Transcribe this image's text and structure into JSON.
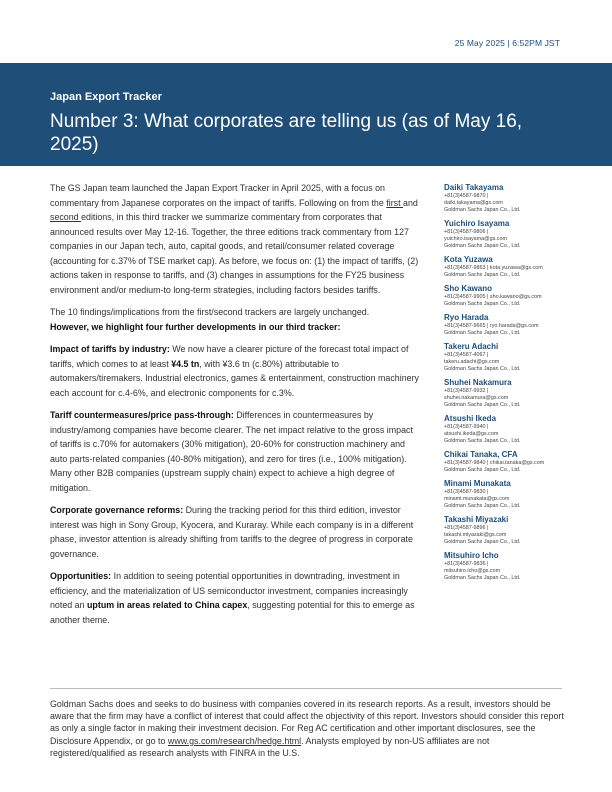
{
  "header": {
    "date": "25 May 2025 | 6:52PM JST"
  },
  "banner": {
    "series": "Japan Export Tracker",
    "title": "Number 3: What corporates are telling us (as of May 16, 2025)"
  },
  "body": {
    "p1": {
      "a": "The GS Japan team launched the Japan Export Tracker in April 2025, with a focus on commentary from Japanese corporates on the impact of tariffs. Following on from the ",
      "link1": "first ",
      "b": "and ",
      "link2": "second ",
      "c": "editions, in this third tracker we summarize commentary from corporates that announced results over May 12-16. Together, the three editions track commentary from 127 companies in our Japan tech, auto, capital goods, and retail/consumer related coverage (accounting for c.37% of TSE market cap). As before, we focus on: (1) the impact of tariffs, (2) actions taken in response to tariffs, and (3) changes in assumptions for the FY25 business environment and/or medium-to long-term strategies, including factors besides tariffs."
    },
    "p2": {
      "a": "The 10 findings/implications from the first/second trackers are largely unchanged.",
      "b": "However, we highlight four further developments in our third tracker:"
    },
    "p3": {
      "head": "Impact of tariffs by industry:",
      "a": " We now have a clearer picture of the forecast total impact of tariffs, which comes to at least ",
      "bold": "¥4.5 tn",
      "b": ", with ¥3.6 tn (c.80%) attributable to automakers/tiremakers. Industrial electronics, games & entertainment, construction machinery each account for c.4-6%, and electronic components for c.3%."
    },
    "p4": {
      "head": "Tariff countermeasures/price pass-through:",
      "a": " Differences in countermeasures by industry/among companies have become clearer. The net impact relative to the gross impact of tariffs is c.70% for automakers (30% mitigation), 20-60% for construction machinery and auto parts-related companies (40-80% mitigation), and zero for tires (i.e., 100% mitigation). Many other B2B companies (upstream supply chain) expect to achieve a high degree of mitigation."
    },
    "p5": {
      "head": "Corporate governance reforms:",
      "a": " During the tracking period for this third edition, investor interest was high in Sony Group, Kyocera, and Kuraray. While each company is in a different phase, investor attention is already shifting from tariffs to the degree of progress in corporate governance."
    },
    "p6": {
      "head": "Opportunities:",
      "a": " In addition to seeing potential opportunities in downtrading, investment in efficiency, and the materialization of US semiconductor investment, companies increasingly noted an ",
      "bold": "uptum in areas related to China capex",
      "b": ", suggesting potential for this to emerge as another theme."
    }
  },
  "authors": [
    {
      "name": "Daiki Takayama",
      "lines": [
        "+81(3)4587-9870 |",
        "daiki.takayama@gs.com",
        "Goldman Sachs Japan Co., Ltd."
      ]
    },
    {
      "name": "Yuichiro Isayama",
      "lines": [
        "+81(3)4587-9806 |",
        "yuichiro.isayama@gs.com",
        "Goldman Sachs Japan Co., Ltd."
      ]
    },
    {
      "name": "Kota Yuzawa",
      "lines": [
        "+81(3)4587-9863 | kota.yuzawa@gs.com",
        "Goldman Sachs Japan Co., Ltd."
      ]
    },
    {
      "name": "Sho Kawano",
      "lines": [
        "+81(3)4587-9905 | sho.kawano@gs.com",
        "Goldman Sachs Japan Co., Ltd."
      ]
    },
    {
      "name": "Ryo Harada",
      "lines": [
        "+81(3)4587-9665 | ryo.harada@gs.com",
        "Goldman Sachs Japan Co., Ltd."
      ]
    },
    {
      "name": "Takeru Adachi",
      "lines": [
        "+81(3)4587-4067 |",
        "takeru.adachi@gs.com",
        "Goldman Sachs Japan Co., Ltd."
      ]
    },
    {
      "name": "Shuhei Nakamura",
      "lines": [
        "+81(3)4587-9932 |",
        "shuhei.nakamura@gs.com",
        "Goldman Sachs Japan Co., Ltd."
      ]
    },
    {
      "name": "Atsushi Ikeda",
      "lines": [
        "+81(3)4587-9940 |",
        "atsushi.ikeda@gs.com",
        "Goldman Sachs Japan Co., Ltd."
      ]
    },
    {
      "name": "Chikai Tanaka, CFA",
      "lines": [
        "+81(3)4587-9840 | chikai.tanaka@gs.com",
        "Goldman Sachs Japan Co., Ltd."
      ]
    },
    {
      "name": "Minami Munakata",
      "lines": [
        "+81(3)4587-9830 |",
        "minami.munakata@gs.com",
        "Goldman Sachs Japan Co., Ltd."
      ]
    },
    {
      "name": "Takashi Miyazaki",
      "lines": [
        "+81(3)4587-9896 |",
        "takashi.miyazaki@gs.com",
        "Goldman Sachs Japan Co., Ltd."
      ]
    },
    {
      "name": "Mitsuhiro Icho",
      "lines": [
        "+81(3)4587-9836 |",
        "mitsuhiro.icho@gs.com",
        "Goldman Sachs Japan Co., Ltd."
      ]
    }
  ],
  "disclaimer": {
    "a": "Goldman Sachs does and seeks to do business with companies covered in its research reports. As a result, investors should be aware that the firm may have a conflict of interest that could affect the objectivity of this report. Investors should consider this report as only a single factor in making their investment decision. For Reg AC certification and other important disclosures, see the Disclosure Appendix, or go to ",
    "link": "www.gs.com/research/hedge.html",
    "b": ". Analysts employed by non-US affiliates are not registered/qualified as research analysts with FINRA in the U.S."
  }
}
